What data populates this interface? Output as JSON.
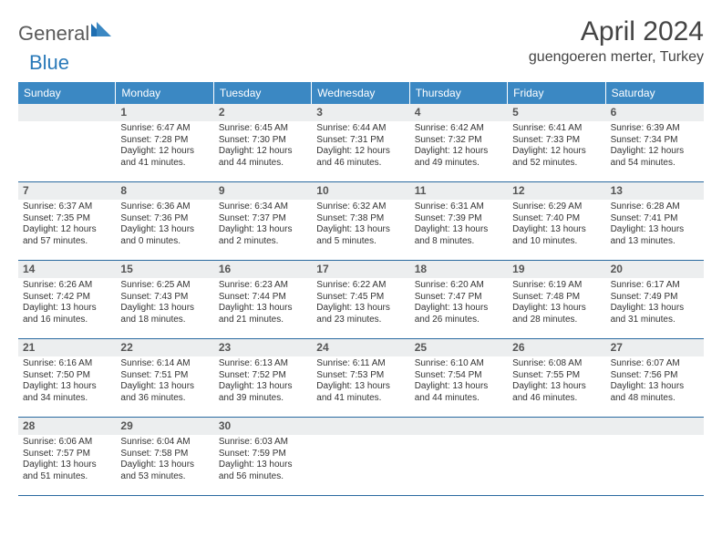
{
  "brand": {
    "part1": "General",
    "part2": "Blue"
  },
  "title": "April 2024",
  "location": "guengoeren merter, Turkey",
  "colors": {
    "header_bg": "#3b88c3",
    "header_text": "#ffffff",
    "daynum_bg": "#eceeef",
    "border": "#2a6aa0",
    "brand_gray": "#5a5a5a",
    "brand_blue": "#2a7ab9"
  },
  "weekdays": [
    "Sunday",
    "Monday",
    "Tuesday",
    "Wednesday",
    "Thursday",
    "Friday",
    "Saturday"
  ],
  "weeks": [
    [
      {
        "n": "",
        "sr": "",
        "ss": "",
        "dl": ""
      },
      {
        "n": "1",
        "sr": "Sunrise: 6:47 AM",
        "ss": "Sunset: 7:28 PM",
        "dl": "Daylight: 12 hours and 41 minutes."
      },
      {
        "n": "2",
        "sr": "Sunrise: 6:45 AM",
        "ss": "Sunset: 7:30 PM",
        "dl": "Daylight: 12 hours and 44 minutes."
      },
      {
        "n": "3",
        "sr": "Sunrise: 6:44 AM",
        "ss": "Sunset: 7:31 PM",
        "dl": "Daylight: 12 hours and 46 minutes."
      },
      {
        "n": "4",
        "sr": "Sunrise: 6:42 AM",
        "ss": "Sunset: 7:32 PM",
        "dl": "Daylight: 12 hours and 49 minutes."
      },
      {
        "n": "5",
        "sr": "Sunrise: 6:41 AM",
        "ss": "Sunset: 7:33 PM",
        "dl": "Daylight: 12 hours and 52 minutes."
      },
      {
        "n": "6",
        "sr": "Sunrise: 6:39 AM",
        "ss": "Sunset: 7:34 PM",
        "dl": "Daylight: 12 hours and 54 minutes."
      }
    ],
    [
      {
        "n": "7",
        "sr": "Sunrise: 6:37 AM",
        "ss": "Sunset: 7:35 PM",
        "dl": "Daylight: 12 hours and 57 minutes."
      },
      {
        "n": "8",
        "sr": "Sunrise: 6:36 AM",
        "ss": "Sunset: 7:36 PM",
        "dl": "Daylight: 13 hours and 0 minutes."
      },
      {
        "n": "9",
        "sr": "Sunrise: 6:34 AM",
        "ss": "Sunset: 7:37 PM",
        "dl": "Daylight: 13 hours and 2 minutes."
      },
      {
        "n": "10",
        "sr": "Sunrise: 6:32 AM",
        "ss": "Sunset: 7:38 PM",
        "dl": "Daylight: 13 hours and 5 minutes."
      },
      {
        "n": "11",
        "sr": "Sunrise: 6:31 AM",
        "ss": "Sunset: 7:39 PM",
        "dl": "Daylight: 13 hours and 8 minutes."
      },
      {
        "n": "12",
        "sr": "Sunrise: 6:29 AM",
        "ss": "Sunset: 7:40 PM",
        "dl": "Daylight: 13 hours and 10 minutes."
      },
      {
        "n": "13",
        "sr": "Sunrise: 6:28 AM",
        "ss": "Sunset: 7:41 PM",
        "dl": "Daylight: 13 hours and 13 minutes."
      }
    ],
    [
      {
        "n": "14",
        "sr": "Sunrise: 6:26 AM",
        "ss": "Sunset: 7:42 PM",
        "dl": "Daylight: 13 hours and 16 minutes."
      },
      {
        "n": "15",
        "sr": "Sunrise: 6:25 AM",
        "ss": "Sunset: 7:43 PM",
        "dl": "Daylight: 13 hours and 18 minutes."
      },
      {
        "n": "16",
        "sr": "Sunrise: 6:23 AM",
        "ss": "Sunset: 7:44 PM",
        "dl": "Daylight: 13 hours and 21 minutes."
      },
      {
        "n": "17",
        "sr": "Sunrise: 6:22 AM",
        "ss": "Sunset: 7:45 PM",
        "dl": "Daylight: 13 hours and 23 minutes."
      },
      {
        "n": "18",
        "sr": "Sunrise: 6:20 AM",
        "ss": "Sunset: 7:47 PM",
        "dl": "Daylight: 13 hours and 26 minutes."
      },
      {
        "n": "19",
        "sr": "Sunrise: 6:19 AM",
        "ss": "Sunset: 7:48 PM",
        "dl": "Daylight: 13 hours and 28 minutes."
      },
      {
        "n": "20",
        "sr": "Sunrise: 6:17 AM",
        "ss": "Sunset: 7:49 PM",
        "dl": "Daylight: 13 hours and 31 minutes."
      }
    ],
    [
      {
        "n": "21",
        "sr": "Sunrise: 6:16 AM",
        "ss": "Sunset: 7:50 PM",
        "dl": "Daylight: 13 hours and 34 minutes."
      },
      {
        "n": "22",
        "sr": "Sunrise: 6:14 AM",
        "ss": "Sunset: 7:51 PM",
        "dl": "Daylight: 13 hours and 36 minutes."
      },
      {
        "n": "23",
        "sr": "Sunrise: 6:13 AM",
        "ss": "Sunset: 7:52 PM",
        "dl": "Daylight: 13 hours and 39 minutes."
      },
      {
        "n": "24",
        "sr": "Sunrise: 6:11 AM",
        "ss": "Sunset: 7:53 PM",
        "dl": "Daylight: 13 hours and 41 minutes."
      },
      {
        "n": "25",
        "sr": "Sunrise: 6:10 AM",
        "ss": "Sunset: 7:54 PM",
        "dl": "Daylight: 13 hours and 44 minutes."
      },
      {
        "n": "26",
        "sr": "Sunrise: 6:08 AM",
        "ss": "Sunset: 7:55 PM",
        "dl": "Daylight: 13 hours and 46 minutes."
      },
      {
        "n": "27",
        "sr": "Sunrise: 6:07 AM",
        "ss": "Sunset: 7:56 PM",
        "dl": "Daylight: 13 hours and 48 minutes."
      }
    ],
    [
      {
        "n": "28",
        "sr": "Sunrise: 6:06 AM",
        "ss": "Sunset: 7:57 PM",
        "dl": "Daylight: 13 hours and 51 minutes."
      },
      {
        "n": "29",
        "sr": "Sunrise: 6:04 AM",
        "ss": "Sunset: 7:58 PM",
        "dl": "Daylight: 13 hours and 53 minutes."
      },
      {
        "n": "30",
        "sr": "Sunrise: 6:03 AM",
        "ss": "Sunset: 7:59 PM",
        "dl": "Daylight: 13 hours and 56 minutes."
      },
      {
        "n": "",
        "sr": "",
        "ss": "",
        "dl": ""
      },
      {
        "n": "",
        "sr": "",
        "ss": "",
        "dl": ""
      },
      {
        "n": "",
        "sr": "",
        "ss": "",
        "dl": ""
      },
      {
        "n": "",
        "sr": "",
        "ss": "",
        "dl": ""
      }
    ]
  ]
}
